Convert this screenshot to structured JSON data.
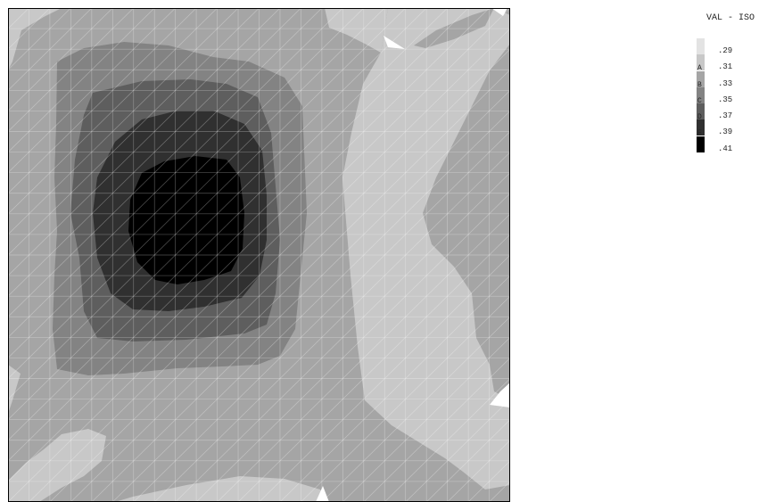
{
  "chart_data": {
    "type": "heatmap",
    "title": "",
    "legend_title": "VAL - ISO",
    "legend_position": "top-right",
    "contour_levels": [
      {
        "letter": "",
        "value": ".29",
        "color": "#e3e3e3"
      },
      {
        "letter": "A",
        "value": ".31",
        "color": "#c8c8c8"
      },
      {
        "letter": "B",
        "value": ".33",
        "color": "#a5a5a5"
      },
      {
        "letter": "C",
        "value": ".35",
        "color": "#838383"
      },
      {
        "letter": "D",
        "value": ".37",
        "color": "#5e5e5e"
      },
      {
        "letter": "E",
        "value": ".39",
        "color": "#303030"
      },
      {
        "letter": "",
        "value": ".41",
        "color": "#000000"
      }
    ],
    "grid": true,
    "mesh": "triangular",
    "peak_region": "upper-left",
    "low_region": "right-center"
  }
}
